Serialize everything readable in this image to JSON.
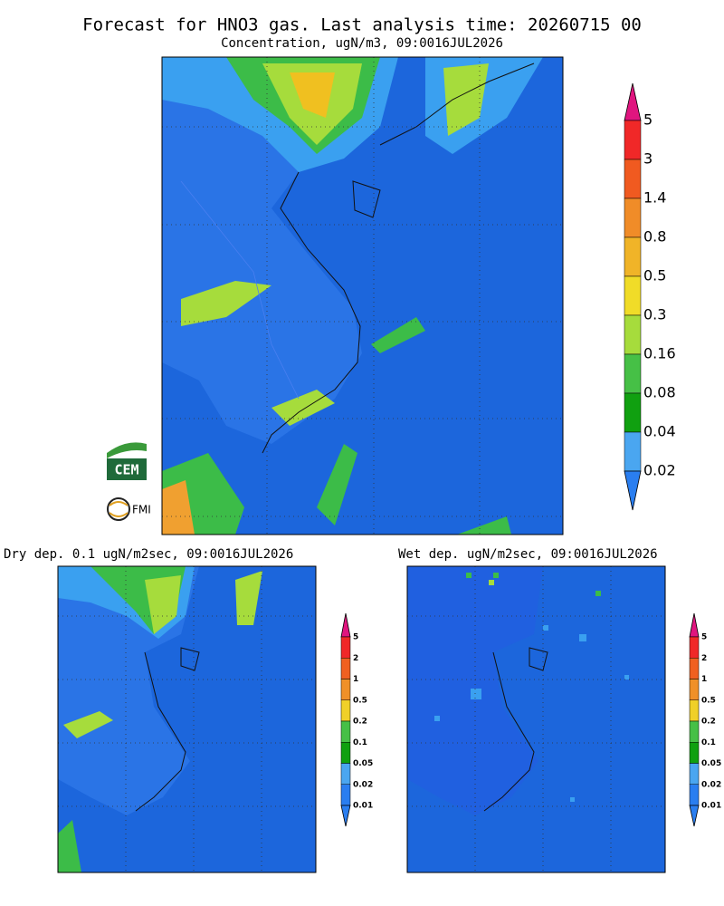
{
  "header": {
    "title": "Forecast for HNO3 gas. Last analysis time: 20260715 00",
    "subtitle": "Concentration, ugN/m3, 09:0016JUL2026"
  },
  "main_map": {
    "colorbar": {
      "labels": [
        "5",
        "3",
        "1.4",
        "0.8",
        "0.5",
        "0.3",
        "0.16",
        "0.08",
        "0.04",
        "0.02"
      ]
    }
  },
  "panels": [
    {
      "title": "Dry dep. 0.1 ugN/m2sec, 09:0016JUL2026",
      "colorbar": {
        "labels": [
          "5",
          "2",
          "1",
          "0.5",
          "0.2",
          "0.1",
          "0.05",
          "0.02",
          "0.01"
        ]
      }
    },
    {
      "title": "Wet dep. ugN/m2sec, 09:0016JUL2026",
      "colorbar": {
        "labels": [
          "5",
          "2",
          "1",
          "0.5",
          "0.2",
          "0.1",
          "0.05",
          "0.02",
          "0.01"
        ]
      }
    }
  ],
  "logos": {
    "cem": "CEM",
    "fmi": "FMI"
  }
}
